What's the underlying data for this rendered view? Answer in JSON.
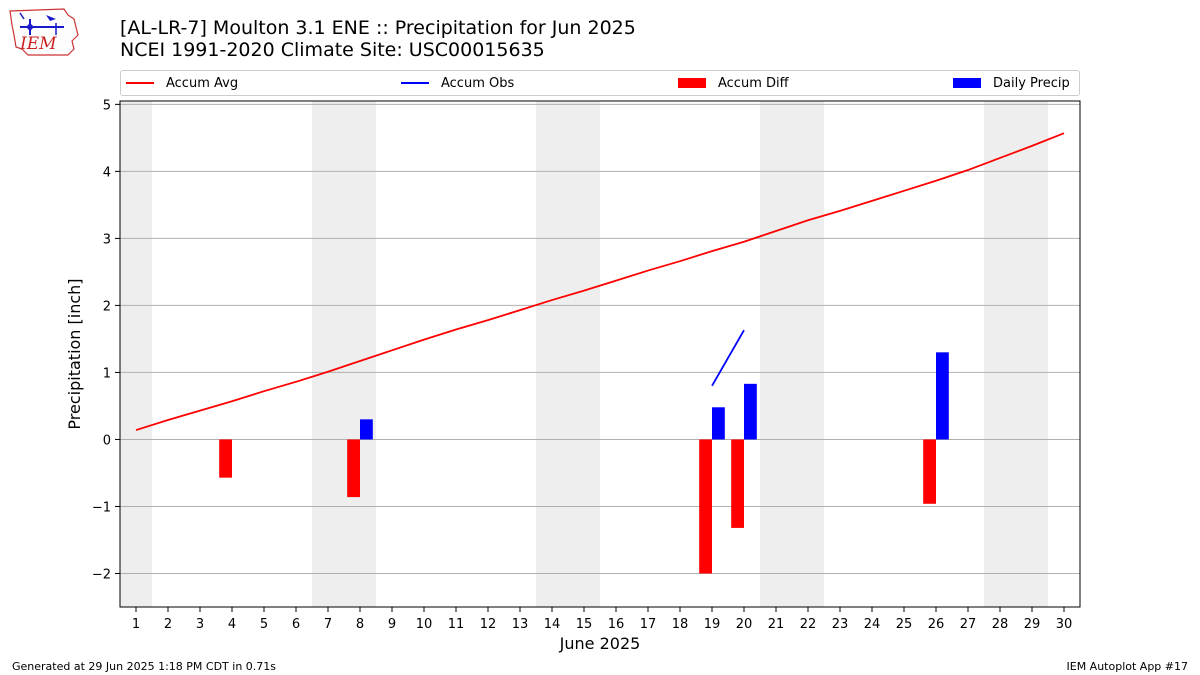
{
  "header": {
    "title": "[AL-LR-7] Moulton 3.1 ENE :: Precipitation for Jun 2025",
    "subtitle": "NCEI 1991-2020 Climate Site: USC00015635"
  },
  "logo": {
    "text": "IEM",
    "icon": "iowa-state-weather-station-logo"
  },
  "footer": {
    "left": "Generated at 29 Jun 2025 1:18 PM CDT in 0.71s",
    "right": "IEM Autoplot App #17"
  },
  "colors": {
    "avg": "#ff0000",
    "obs": "#0000ff",
    "diff": "#ff0000",
    "daily": "#0000ff",
    "weekend": "#eeeeee",
    "grid": "#b0b0b0"
  },
  "chart_data": {
    "type": "bar",
    "xlabel": "June 2025",
    "ylabel": "Precipitation [inch]",
    "xlim": [
      0.5,
      30.5
    ],
    "ylim": [
      -2.5,
      5.05
    ],
    "x_ticks": [
      1,
      2,
      3,
      4,
      5,
      6,
      7,
      8,
      9,
      10,
      11,
      12,
      13,
      14,
      15,
      16,
      17,
      18,
      19,
      20,
      21,
      22,
      23,
      24,
      25,
      26,
      27,
      28,
      29,
      30
    ],
    "y_ticks": [
      -2,
      -1,
      0,
      1,
      2,
      3,
      4,
      5
    ],
    "y_tick_labels": [
      "−2",
      "−1",
      "0",
      "1",
      "2",
      "3",
      "4",
      "5"
    ],
    "grid": "y",
    "legend_position": "top",
    "weekend_days": [
      1,
      7,
      8,
      14,
      15,
      21,
      22,
      28,
      29
    ],
    "series": [
      {
        "name": "Accum Avg",
        "kind": "line",
        "x": [
          1,
          2,
          3,
          4,
          5,
          6,
          7,
          8,
          9,
          10,
          11,
          12,
          13,
          14,
          15,
          16,
          17,
          18,
          19,
          20,
          21,
          22,
          23,
          24,
          25,
          26,
          27,
          28,
          29,
          30
        ],
        "values": [
          0.14,
          0.29,
          0.43,
          0.57,
          0.72,
          0.86,
          1.01,
          1.17,
          1.33,
          1.49,
          1.64,
          1.78,
          1.93,
          2.08,
          2.22,
          2.37,
          2.52,
          2.66,
          2.81,
          2.95,
          3.11,
          3.27,
          3.41,
          3.56,
          3.71,
          3.86,
          4.02,
          4.2,
          4.38,
          4.57
        ]
      },
      {
        "name": "Accum Obs",
        "kind": "line",
        "x": [
          19,
          20
        ],
        "values": [
          0.8,
          1.63
        ]
      },
      {
        "name": "Accum Diff",
        "kind": "bar",
        "offset": -0.2,
        "x": [
          4,
          8,
          19,
          20,
          26
        ],
        "values": [
          -0.57,
          -0.86,
          -2.0,
          -1.32,
          -0.96
        ]
      },
      {
        "name": "Daily Precip",
        "kind": "bar",
        "offset": 0.2,
        "x": [
          8,
          19,
          20,
          26
        ],
        "values": [
          0.3,
          0.48,
          0.83,
          1.3
        ]
      }
    ]
  }
}
